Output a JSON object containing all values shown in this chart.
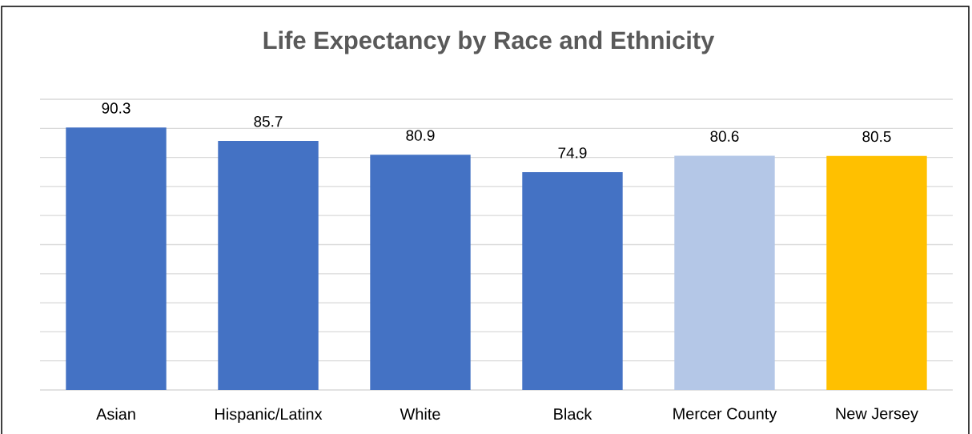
{
  "chart_data": {
    "type": "bar",
    "title": "Life Expectancy by Race and Ethnicity",
    "categories": [
      "Asian",
      "Hispanic/Latinx",
      "White",
      "Black",
      "Mercer County",
      "New Jersey"
    ],
    "values": [
      90.3,
      85.7,
      80.9,
      74.9,
      80.6,
      80.5
    ],
    "colors": [
      "#4472c4",
      "#4472c4",
      "#4472c4",
      "#4472c4",
      "#b4c7e7",
      "#ffc000"
    ],
    "ylim": [
      0,
      100
    ],
    "yticks": [
      0,
      10,
      20,
      30,
      40,
      50,
      60,
      70,
      80,
      90,
      100
    ],
    "grid": "y",
    "tick_labels": "x",
    "data_labels": true
  }
}
